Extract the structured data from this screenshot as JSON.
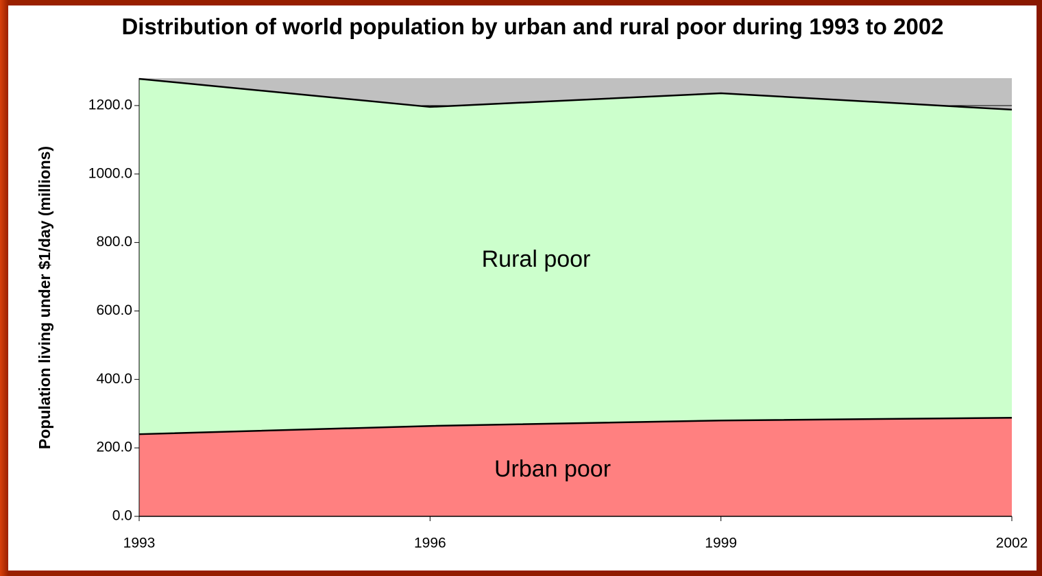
{
  "chart_data": {
    "type": "stacked_area",
    "title": "Distribution of world population by urban and rural poor during 1993 to 2002",
    "y_label": "Population living under $1/day (millions)",
    "categories": [
      "1993",
      "1996",
      "1999",
      "2002"
    ],
    "series": [
      {
        "name": "Urban poor",
        "color": "#ff8080",
        "values": [
          240,
          264,
          280,
          288
        ]
      },
      {
        "name": "Rural poor",
        "color": "#ccffcc",
        "values": [
          1038,
          932,
          956,
          900
        ]
      }
    ],
    "ylim": [
      0,
      1280
    ],
    "yticks": [
      {
        "value": 0,
        "label": "0.0"
      },
      {
        "value": 200,
        "label": "200.0"
      },
      {
        "value": 400,
        "label": "400.0"
      },
      {
        "value": 600,
        "label": "600.0"
      },
      {
        "value": 800,
        "label": "800.0"
      },
      {
        "value": 1000,
        "label": "1000.0"
      },
      {
        "value": 1200,
        "label": "1200.0"
      }
    ],
    "grid": true,
    "plot_background": "#c0c0c0"
  }
}
